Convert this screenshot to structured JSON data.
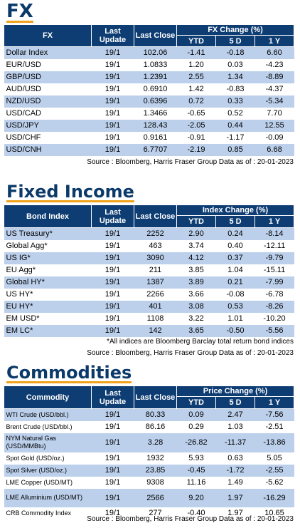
{
  "fx": {
    "title": "FX",
    "headers": {
      "name": "FX",
      "last_update": "Last Update",
      "last_close": "Last Close",
      "change_group": "FX Change (%)",
      "ytd": "YTD",
      "d5": "5 D",
      "y1": "1 Y"
    },
    "rows": [
      [
        "Dollar Index",
        "19/1",
        "102.06",
        "-1.41",
        "-0.18",
        "6.60"
      ],
      [
        "EUR/USD",
        "19/1",
        "1.0833",
        "1.20",
        "0.03",
        "-4.23"
      ],
      [
        "GBP/USD",
        "19/1",
        "1.2391",
        "2.55",
        "1.34",
        "-8.89"
      ],
      [
        "AUD/USD",
        "19/1",
        "0.6910",
        "1.42",
        "-0.83",
        "-4.37"
      ],
      [
        "NZD/USD",
        "19/1",
        "0.6396",
        "0.72",
        "0.33",
        "-5.34"
      ],
      [
        "USD/CAD",
        "19/1",
        "1.3466",
        "-0.65",
        "0.52",
        "7.70"
      ],
      [
        "USD/JPY",
        "19/1",
        "128.43",
        "-2.05",
        "0.44",
        "12.55"
      ],
      [
        "USD/CHF",
        "19/1",
        "0.9161",
        "-0.91",
        "-1.17",
        "-0.09"
      ],
      [
        "USD/CNH",
        "19/1",
        "6.7707",
        "-2.19",
        "0.85",
        "6.68"
      ]
    ],
    "source": "Source : Bloomberg, Harris Fraser Group Data as of : 20-01-2023"
  },
  "fixed_income": {
    "title": "Fixed Income",
    "headers": {
      "name": "Bond Index",
      "last_update": "Last Update",
      "last_close": "Last Close",
      "change_group": "Index Change (%)",
      "ytd": "YTD",
      "d5": "5 D",
      "y1": "1 Y"
    },
    "rows": [
      [
        "US Treasury*",
        "19/1",
        "2252",
        "2.90",
        "0.24",
        "-8.14"
      ],
      [
        "Global Agg*",
        "19/1",
        "463",
        "3.74",
        "0.40",
        "-12.11"
      ],
      [
        "US IG*",
        "19/1",
        "3090",
        "4.12",
        "0.37",
        "-9.79"
      ],
      [
        "EU Agg*",
        "19/1",
        "211",
        "3.85",
        "1.04",
        "-15.11"
      ],
      [
        "Global HY*",
        "19/1",
        "1387",
        "3.89",
        "0.21",
        "-7.99"
      ],
      [
        "US HY*",
        "19/1",
        "2266",
        "3.66",
        "-0.08",
        "-6.78"
      ],
      [
        "EU HY*",
        "19/1",
        "401",
        "3.08",
        "0.53",
        "-8.26"
      ],
      [
        "EM USD*",
        "19/1",
        "1108",
        "3.22",
        "1.01",
        "-10.20"
      ],
      [
        "EM LC*",
        "19/1",
        "142",
        "3.65",
        "-0.50",
        "-5.56"
      ]
    ],
    "note": "*All indices are Bloomberg Barclay total return bond indices",
    "source": "Source : Bloomberg, Harris Fraser Group Data as of : 20-01-2023"
  },
  "commodities": {
    "title": "Commodities",
    "headers": {
      "name": "Commodity",
      "last_update": "Last Update",
      "last_close": "Last Close",
      "change_group": "Price Change (%)",
      "ytd": "YTD",
      "d5": "5 D",
      "y1": "1 Y"
    },
    "rows": [
      [
        "WTI Crude (USD/bbl.)",
        "19/1",
        "80.33",
        "0.09",
        "2.47",
        "-7.56"
      ],
      [
        "Brent Crude (USD/bbl.)",
        "19/1",
        "86.16",
        "0.29",
        "1.03",
        "-2.51"
      ],
      [
        "NYM Natural Gas (USD/MMBtu)",
        "19/1",
        "3.28",
        "-26.82",
        "-11.37",
        "-13.86"
      ],
      [
        "Spot Gold (USD/oz.)",
        "19/1",
        "1932",
        "5.93",
        "0.63",
        "5.05"
      ],
      [
        "Spot Silver (USD/oz.)",
        "19/1",
        "23.85",
        "-0.45",
        "-1.72",
        "-2.55"
      ],
      [
        "LME Copper  (USD/MT)",
        "19/1",
        "9308",
        "11.16",
        "1.49",
        "-5.62"
      ],
      [
        "LME Alluminium (USD/MT)",
        "19/1",
        "2566",
        "9.20",
        "1.97",
        "-16.29"
      ],
      [
        "CRB Commodity Index",
        "19/1",
        "277",
        "-0.40",
        "1.97",
        "10.65"
      ]
    ],
    "source": "Source : Bloomberg, Harris Fraser Group Data as of : 20-01-2023"
  }
}
